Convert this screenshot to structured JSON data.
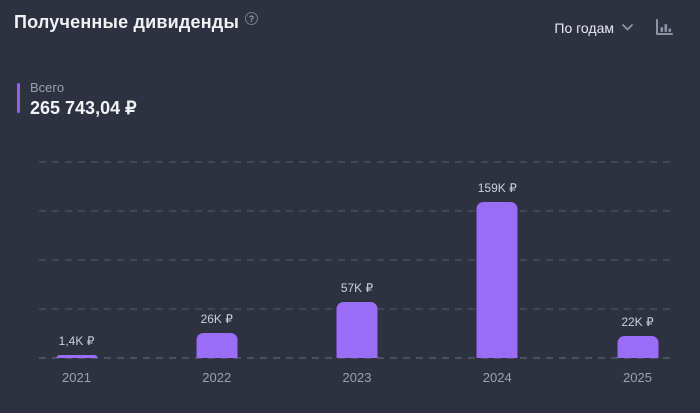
{
  "header": {
    "title": "Полученные дивиденды",
    "help_icon": "?",
    "period_label": "По годам"
  },
  "total": {
    "label": "Всего",
    "value": "265 743,04 ₽"
  },
  "chart_data": {
    "type": "bar",
    "title": "Полученные дивиденды",
    "xlabel": "",
    "ylabel": "",
    "categories": [
      "2021",
      "2022",
      "2023",
      "2024",
      "2025"
    ],
    "values": [
      1400,
      26000,
      57000,
      159000,
      22000
    ],
    "value_labels": [
      "1,4K ₽",
      "26K ₽",
      "57K ₽",
      "159K ₽",
      "22K ₽"
    ],
    "currency": "₽",
    "ylim": [
      0,
      200000
    ],
    "grid_step": 50000,
    "grid": "horizontal-dashed",
    "legend": "none",
    "bar_color": "#9b6cf6"
  },
  "colors": {
    "background": "#2e3140",
    "bar": "#9b6cf6",
    "accent": "#8c62ea",
    "text_primary": "#f0f2f6",
    "text_secondary": "#9aa0ae",
    "gridline": "#424656"
  }
}
